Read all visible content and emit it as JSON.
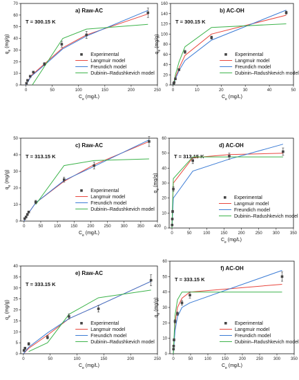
{
  "chart_data": [
    {
      "type": "line",
      "title": "a) Raw-AC",
      "temperature": "T = 300.15 K",
      "xlabel": "C_e (mg/L)",
      "ylabel": "q_e (mg/g)",
      "xlim": [
        -10,
        250
      ],
      "ylim": [
        0,
        70
      ],
      "xticks": [
        0,
        50,
        100,
        150,
        200,
        250
      ],
      "yticks": [
        0,
        10,
        20,
        30,
        40,
        50,
        60,
        70
      ],
      "legend_position": "bottom-right",
      "points": {
        "name": "Experimental",
        "x": [
          1,
          3,
          8,
          14,
          35,
          68,
          115,
          232
        ],
        "y": [
          1.5,
          4,
          7.5,
          11,
          18,
          35,
          43,
          62
        ],
        "err": [
          0.5,
          0.6,
          0.7,
          0.8,
          1.2,
          2.5,
          3,
          4
        ]
      },
      "series": [
        {
          "name": "Langmuir model",
          "color": "#e8453c",
          "x": [
            0,
            10,
            40,
            70,
            115,
            232
          ],
          "y": [
            0,
            8,
            20,
            32,
            43,
            61
          ]
        },
        {
          "name": "Freundich model",
          "color": "#3a7bd5",
          "x": [
            0,
            10,
            40,
            70,
            115,
            232
          ],
          "y": [
            0,
            7.5,
            19,
            31,
            42,
            64
          ]
        },
        {
          "name": "Dubinin–Radushkevich model",
          "color": "#3cb34a",
          "x": [
            12,
            70,
            115,
            232
          ],
          "y": [
            0,
            40,
            48,
            52
          ]
        }
      ]
    },
    {
      "type": "line",
      "title": "b) AC-OH",
      "temperature": "T = 300.15 K",
      "xlabel": "C_e (mg/L)",
      "ylabel": "q_e (mg/g)",
      "xlim": [
        -1,
        50
      ],
      "ylim": [
        0,
        160
      ],
      "xticks": [
        0,
        10,
        20,
        30,
        40,
        50
      ],
      "yticks": [
        0,
        20,
        40,
        60,
        80,
        100,
        120,
        140,
        160
      ],
      "legend_position": "bottom-right",
      "points": {
        "name": "Experimental",
        "x": [
          0.3,
          0.5,
          1,
          2.5,
          5,
          16,
          47
        ],
        "y": [
          3,
          5,
          12,
          30,
          65,
          93,
          142
        ],
        "err": [
          1,
          1,
          2,
          2,
          3,
          3,
          3
        ]
      },
      "series": [
        {
          "name": "Langmuir model",
          "color": "#e8453c",
          "x": [
            0,
            1,
            2.5,
            5,
            16,
            47
          ],
          "y": [
            0,
            15,
            33,
            58,
            100,
            137
          ]
        },
        {
          "name": "Freundich model",
          "color": "#3a7bd5",
          "x": [
            0,
            1,
            2.5,
            5,
            16,
            47
          ],
          "y": [
            0,
            12,
            28,
            48,
            88,
            147
          ]
        },
        {
          "name": "Dubinin–Radushkevich model",
          "color": "#3cb34a",
          "x": [
            0.3,
            1,
            2.5,
            5,
            16,
            47
          ],
          "y": [
            0,
            20,
            45,
            75,
            113,
            120
          ]
        }
      ]
    },
    {
      "type": "line",
      "title": "c) Raw-AC",
      "temperature": "T = 313.15 K",
      "xlabel": "C_e (mg/L)",
      "ylabel": "q_e (mg/g)",
      "xlim": [
        -10,
        400
      ],
      "ylim": [
        0,
        50
      ],
      "xticks": [
        0,
        50,
        100,
        150,
        200,
        250,
        300,
        350,
        400
      ],
      "yticks": [
        0,
        10,
        20,
        30,
        40,
        50
      ],
      "legend_position": "bottom-right",
      "points": {
        "name": "Experimental",
        "x": [
          2,
          6,
          10,
          14,
          35,
          120,
          210,
          375
        ],
        "y": [
          1.5,
          2.5,
          4,
          5.5,
          11.5,
          25,
          33.5,
          48
        ],
        "err": [
          0.5,
          0.5,
          0.6,
          0.6,
          1,
          1.5,
          2,
          3
        ]
      },
      "series": [
        {
          "name": "Langmuir model",
          "color": "#e8453c",
          "x": [
            0,
            14,
            35,
            120,
            210,
            375
          ],
          "y": [
            0,
            5,
            11,
            24,
            34,
            48
          ]
        },
        {
          "name": "Freundich model",
          "color": "#3a7bd5",
          "x": [
            0,
            14,
            35,
            120,
            210,
            375
          ],
          "y": [
            0,
            5,
            11,
            24.5,
            33,
            49
          ]
        },
        {
          "name": "Dubinin–Radushkevich model",
          "color": "#3cb34a",
          "x": [
            35,
            120,
            210,
            375
          ],
          "y": [
            10,
            33.5,
            36.5,
            37.5
          ]
        }
      ]
    },
    {
      "type": "line",
      "title": "d) AC-OH",
      "temperature": "T = 313.15 K",
      "xlabel": "C_e (mg/L)",
      "ylabel": "q_e (mg/g)",
      "xlim": [
        -8,
        350
      ],
      "ylim": [
        0,
        60
      ],
      "xticks": [
        0,
        50,
        100,
        150,
        200,
        250,
        300,
        350
      ],
      "yticks": [
        0,
        10,
        20,
        30,
        40,
        50,
        60
      ],
      "legend_position": "bottom-right",
      "points": {
        "name": "Experimental",
        "x": [
          0.5,
          1,
          2,
          4,
          60,
          165,
          320
        ],
        "y": [
          2,
          6,
          11,
          26,
          45,
          48,
          51
        ],
        "err": [
          0.5,
          0.6,
          0.8,
          1.5,
          2,
          2,
          2.5
        ]
      },
      "series": [
        {
          "name": "Langmuir model",
          "color": "#e8453c",
          "x": [
            0,
            4,
            60,
            165,
            320
          ],
          "y": [
            0,
            30,
            47,
            49,
            50
          ]
        },
        {
          "name": "Freundich model",
          "color": "#3a7bd5",
          "x": [
            0,
            4,
            60,
            165,
            320
          ],
          "y": [
            0,
            20,
            38,
            46,
            56
          ]
        },
        {
          "name": "Dubinin–Radushkevich model",
          "color": "#3cb34a",
          "x": [
            0,
            4,
            60,
            165,
            320
          ],
          "y": [
            0,
            33,
            47.5,
            47.5,
            47.5
          ]
        }
      ]
    },
    {
      "type": "line",
      "title": "e) Raw-AC",
      "temperature": "T = 333.15 K",
      "xlabel": "C_e (mg/L)",
      "ylabel": "q_e (mg/g)",
      "xlim": [
        -5,
        250
      ],
      "ylim": [
        0,
        40
      ],
      "xticks": [
        0,
        50,
        100,
        150,
        200,
        250
      ],
      "yticks": [
        0,
        5,
        10,
        15,
        20,
        25,
        30,
        35,
        40
      ],
      "legend_position": "bottom-right",
      "points": {
        "name": "Experimental",
        "x": [
          1,
          3,
          10,
          45,
          85,
          140,
          238
        ],
        "y": [
          1.5,
          2.5,
          4.5,
          7.5,
          17,
          20.5,
          33.5
        ],
        "err": [
          0.5,
          0.5,
          0.6,
          0.8,
          1.2,
          1.5,
          2.5
        ]
      },
      "series": [
        {
          "name": "Langmuir model",
          "color": "#e8453c",
          "x": [
            0,
            10,
            45,
            85,
            140,
            238
          ],
          "y": [
            0,
            2.5,
            8.5,
            16,
            22,
            33
          ]
        },
        {
          "name": "Freundich model",
          "color": "#3a7bd5",
          "x": [
            0,
            10,
            45,
            85,
            140,
            238
          ],
          "y": [
            0,
            3,
            9.5,
            16,
            22,
            33
          ]
        },
        {
          "name": "Dubinin–Radushkevich model",
          "color": "#3cb34a",
          "x": [
            10,
            45,
            85,
            140,
            238
          ],
          "y": [
            1,
            5,
            18,
            25.5,
            29
          ]
        }
      ]
    },
    {
      "type": "line",
      "title": "f) AC-OH",
      "temperature": "T = 333.15 K",
      "xlabel": "C_e (mg/L)",
      "ylabel": "q_e (mg/g)",
      "xlim": [
        -10,
        350
      ],
      "ylim": [
        0,
        60
      ],
      "xticks": [
        0,
        50,
        100,
        150,
        200,
        250,
        300,
        350
      ],
      "yticks": [
        0,
        10,
        20,
        30,
        40,
        50,
        60
      ],
      "legend_position": "bottom-right",
      "points": {
        "name": "Experimental",
        "x": [
          0.5,
          1,
          2,
          5,
          12,
          25,
          48,
          315
        ],
        "y": [
          3,
          5,
          9,
          21,
          26,
          33,
          38,
          50
        ],
        "err": [
          0.5,
          0.6,
          0.8,
          1,
          1.2,
          1.5,
          2,
          3
        ]
      },
      "series": [
        {
          "name": "Langmuir model",
          "color": "#e8453c",
          "x": [
            0,
            5,
            12,
            25,
            48,
            315
          ],
          "y": [
            0,
            20,
            30,
            36,
            40,
            45
          ]
        },
        {
          "name": "Freundich model",
          "color": "#3a7bd5",
          "x": [
            0,
            5,
            12,
            25,
            48,
            315
          ],
          "y": [
            0,
            15,
            24,
            30,
            33,
            54
          ]
        },
        {
          "name": "Dubinin–Radushkevich model",
          "color": "#3cb34a",
          "x": [
            0,
            5,
            12,
            25,
            48,
            315
          ],
          "y": [
            0,
            25,
            35,
            40,
            40,
            40
          ]
        }
      ]
    }
  ]
}
